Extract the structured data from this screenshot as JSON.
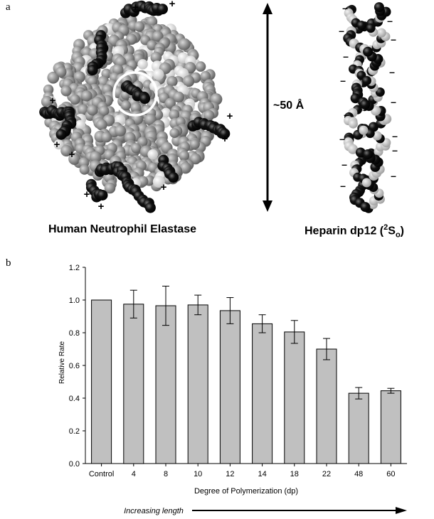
{
  "figure": {
    "panel_a_label": "a",
    "panel_b_label": "b",
    "protein_caption": "Human Neutrophil Elastase",
    "heparin_caption_prefix": "Heparin dp12 (",
    "heparin_caption_sup": "2",
    "heparin_caption_main": "S",
    "heparin_caption_sub": "o",
    "heparin_caption_suffix": ")",
    "dimension_label": "~50 Å",
    "plus_sign": "+",
    "minus_sign": "–",
    "increasing_label": "Increasing length"
  },
  "chart_data": {
    "type": "bar",
    "categories": [
      "Control",
      "4",
      "8",
      "10",
      "12",
      "14",
      "18",
      "22",
      "48",
      "60"
    ],
    "values": [
      1.0,
      0.975,
      0.965,
      0.97,
      0.935,
      0.855,
      0.805,
      0.7,
      0.43,
      0.445
    ],
    "errors": [
      0,
      0.085,
      0.12,
      0.06,
      0.08,
      0.055,
      0.07,
      0.065,
      0.035,
      0.015
    ],
    "xlabel": "Degree of Polymerization (dp)",
    "ylabel": "Relative Rate",
    "ylim": [
      0,
      1.2
    ],
    "yticks": [
      "0.0",
      "0.2",
      "0.4",
      "0.6",
      "0.8",
      "1.0",
      "1.2"
    ],
    "bar_color": "#c0c0c0"
  }
}
